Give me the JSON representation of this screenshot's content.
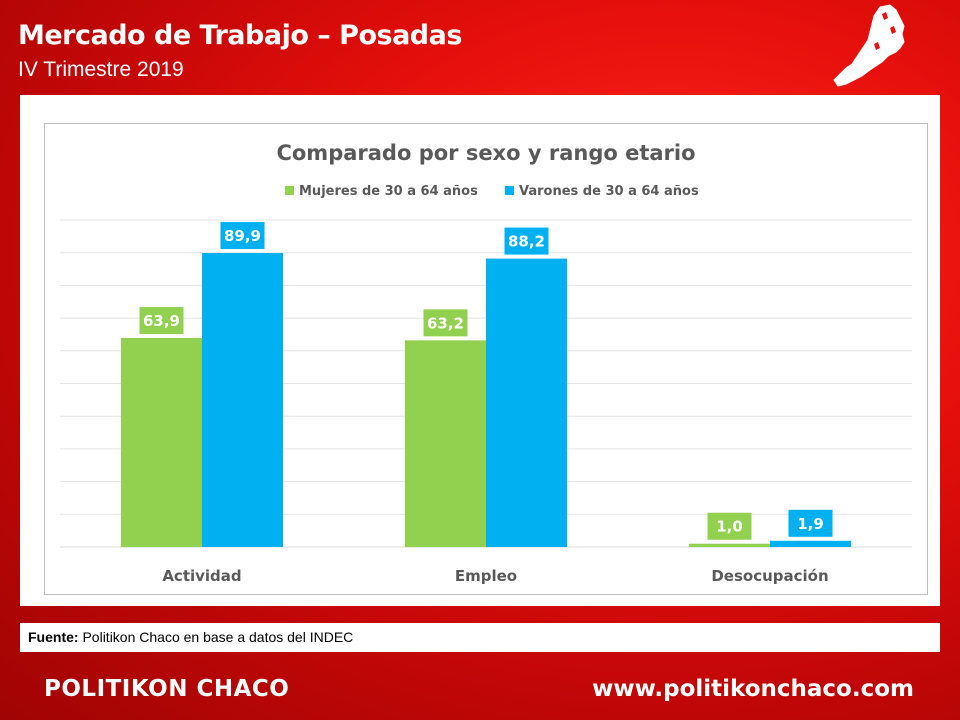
{
  "header": {
    "title": "Mercado de Trabajo – Posadas",
    "subtitle": "IV Trimestre 2019"
  },
  "icons": {
    "map": "misiones-province-map-icon"
  },
  "source": {
    "label": "Fuente:",
    "text": "Politikon Chaco en base a datos del INDEC"
  },
  "footer": {
    "brand": "POLITIKON CHACO",
    "url": "www.politikonchaco.com"
  },
  "colors": {
    "background": "#d40a0a",
    "mujeres": "#92d050",
    "varones": "#00b0f0"
  },
  "chart_data": {
    "type": "bar",
    "title": "Comparado por sexo y rango etario",
    "categories": [
      "Actividad",
      "Empleo",
      "Desocupación"
    ],
    "series": [
      {
        "name": "Mujeres de 30 a 64 años",
        "values": [
          63.9,
          63.2,
          1.0
        ],
        "labels": [
          "63,9",
          "63,2",
          "1,0"
        ],
        "color": "#92d050"
      },
      {
        "name": "Varones de 30 a 64 años",
        "values": [
          89.9,
          88.2,
          1.9
        ],
        "labels": [
          "89,9",
          "88,2",
          "1,9"
        ],
        "color": "#00b0f0"
      }
    ],
    "ylim": [
      0,
      100
    ],
    "grid": true,
    "legend": "top"
  }
}
